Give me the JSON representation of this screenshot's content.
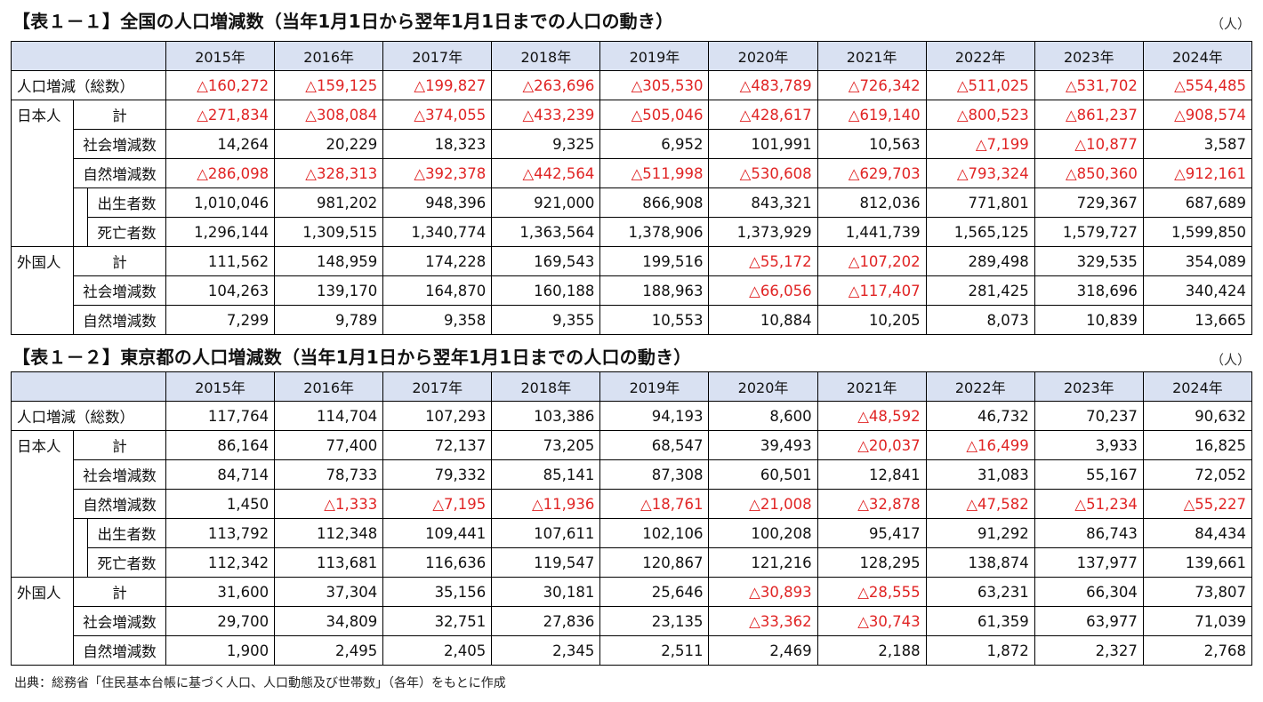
{
  "colors": {
    "negative": "#e02424",
    "header_bg": "#d9e1f2"
  },
  "unit": "（人）",
  "years": [
    "2015年",
    "2016年",
    "2017年",
    "2018年",
    "2019年",
    "2020年",
    "2021年",
    "2022年",
    "2023年",
    "2024年"
  ],
  "labels": {
    "total": "人口増減（総数）",
    "japanese": "日本人",
    "foreign": "外国人",
    "sum": "計",
    "social": "社会増減数",
    "natural": "自然増減数",
    "births": "出生者数",
    "deaths": "死亡者数"
  },
  "table1": {
    "title": "【表１－１】全国の人口増減数（当年1月1日から翌年1月1日までの人口の動き）",
    "total": [
      "△160,272",
      "△159,125",
      "△199,827",
      "△263,696",
      "△305,530",
      "△483,789",
      "△726,342",
      "△511,025",
      "△531,702",
      "△554,485"
    ],
    "jp_sum": [
      "△271,834",
      "△308,084",
      "△374,055",
      "△433,239",
      "△505,046",
      "△428,617",
      "△619,140",
      "△800,523",
      "△861,237",
      "△908,574"
    ],
    "jp_social": [
      "14,264",
      "20,229",
      "18,323",
      "9,325",
      "6,952",
      "101,991",
      "10,563",
      "△7,199",
      "△10,877",
      "3,587"
    ],
    "jp_natural": [
      "△286,098",
      "△328,313",
      "△392,378",
      "△442,564",
      "△511,998",
      "△530,608",
      "△629,703",
      "△793,324",
      "△850,360",
      "△912,161"
    ],
    "jp_births": [
      "1,010,046",
      "981,202",
      "948,396",
      "921,000",
      "866,908",
      "843,321",
      "812,036",
      "771,801",
      "729,367",
      "687,689"
    ],
    "jp_deaths": [
      "1,296,144",
      "1,309,515",
      "1,340,774",
      "1,363,564",
      "1,378,906",
      "1,373,929",
      "1,441,739",
      "1,565,125",
      "1,579,727",
      "1,599,850"
    ],
    "fr_sum": [
      "111,562",
      "148,959",
      "174,228",
      "169,543",
      "199,516",
      "△55,172",
      "△107,202",
      "289,498",
      "329,535",
      "354,089"
    ],
    "fr_social": [
      "104,263",
      "139,170",
      "164,870",
      "160,188",
      "188,963",
      "△66,056",
      "△117,407",
      "281,425",
      "318,696",
      "340,424"
    ],
    "fr_natural": [
      "7,299",
      "9,789",
      "9,358",
      "9,355",
      "10,553",
      "10,884",
      "10,205",
      "8,073",
      "10,839",
      "13,665"
    ]
  },
  "table2": {
    "title": "【表１－２】東京都の人口増減数（当年1月1日から翌年1月1日までの人口の動き）",
    "total": [
      "117,764",
      "114,704",
      "107,293",
      "103,386",
      "94,193",
      "8,600",
      "△48,592",
      "46,732",
      "70,237",
      "90,632"
    ],
    "jp_sum": [
      "86,164",
      "77,400",
      "72,137",
      "73,205",
      "68,547",
      "39,493",
      "△20,037",
      "△16,499",
      "3,933",
      "16,825"
    ],
    "jp_social": [
      "84,714",
      "78,733",
      "79,332",
      "85,141",
      "87,308",
      "60,501",
      "12,841",
      "31,083",
      "55,167",
      "72,052"
    ],
    "jp_natural": [
      "1,450",
      "△1,333",
      "△7,195",
      "△11,936",
      "△18,761",
      "△21,008",
      "△32,878",
      "△47,582",
      "△51,234",
      "△55,227"
    ],
    "jp_births": [
      "113,792",
      "112,348",
      "109,441",
      "107,611",
      "102,106",
      "100,208",
      "95,417",
      "91,292",
      "86,743",
      "84,434"
    ],
    "jp_deaths": [
      "112,342",
      "113,681",
      "116,636",
      "119,547",
      "120,867",
      "121,216",
      "128,295",
      "138,874",
      "137,977",
      "139,661"
    ],
    "fr_sum": [
      "31,600",
      "37,304",
      "35,156",
      "30,181",
      "25,646",
      "△30,893",
      "△28,555",
      "63,231",
      "66,304",
      "73,807"
    ],
    "fr_social": [
      "29,700",
      "34,809",
      "32,751",
      "27,836",
      "23,135",
      "△33,362",
      "△30,743",
      "61,359",
      "63,977",
      "71,039"
    ],
    "fr_natural": [
      "1,900",
      "2,495",
      "2,405",
      "2,345",
      "2,511",
      "2,469",
      "2,188",
      "1,872",
      "2,327",
      "2,768"
    ]
  },
  "source": "出典：総務省「住民基本台帳に基づく人口、人口動態及び世帯数」（各年）をもとに作成"
}
